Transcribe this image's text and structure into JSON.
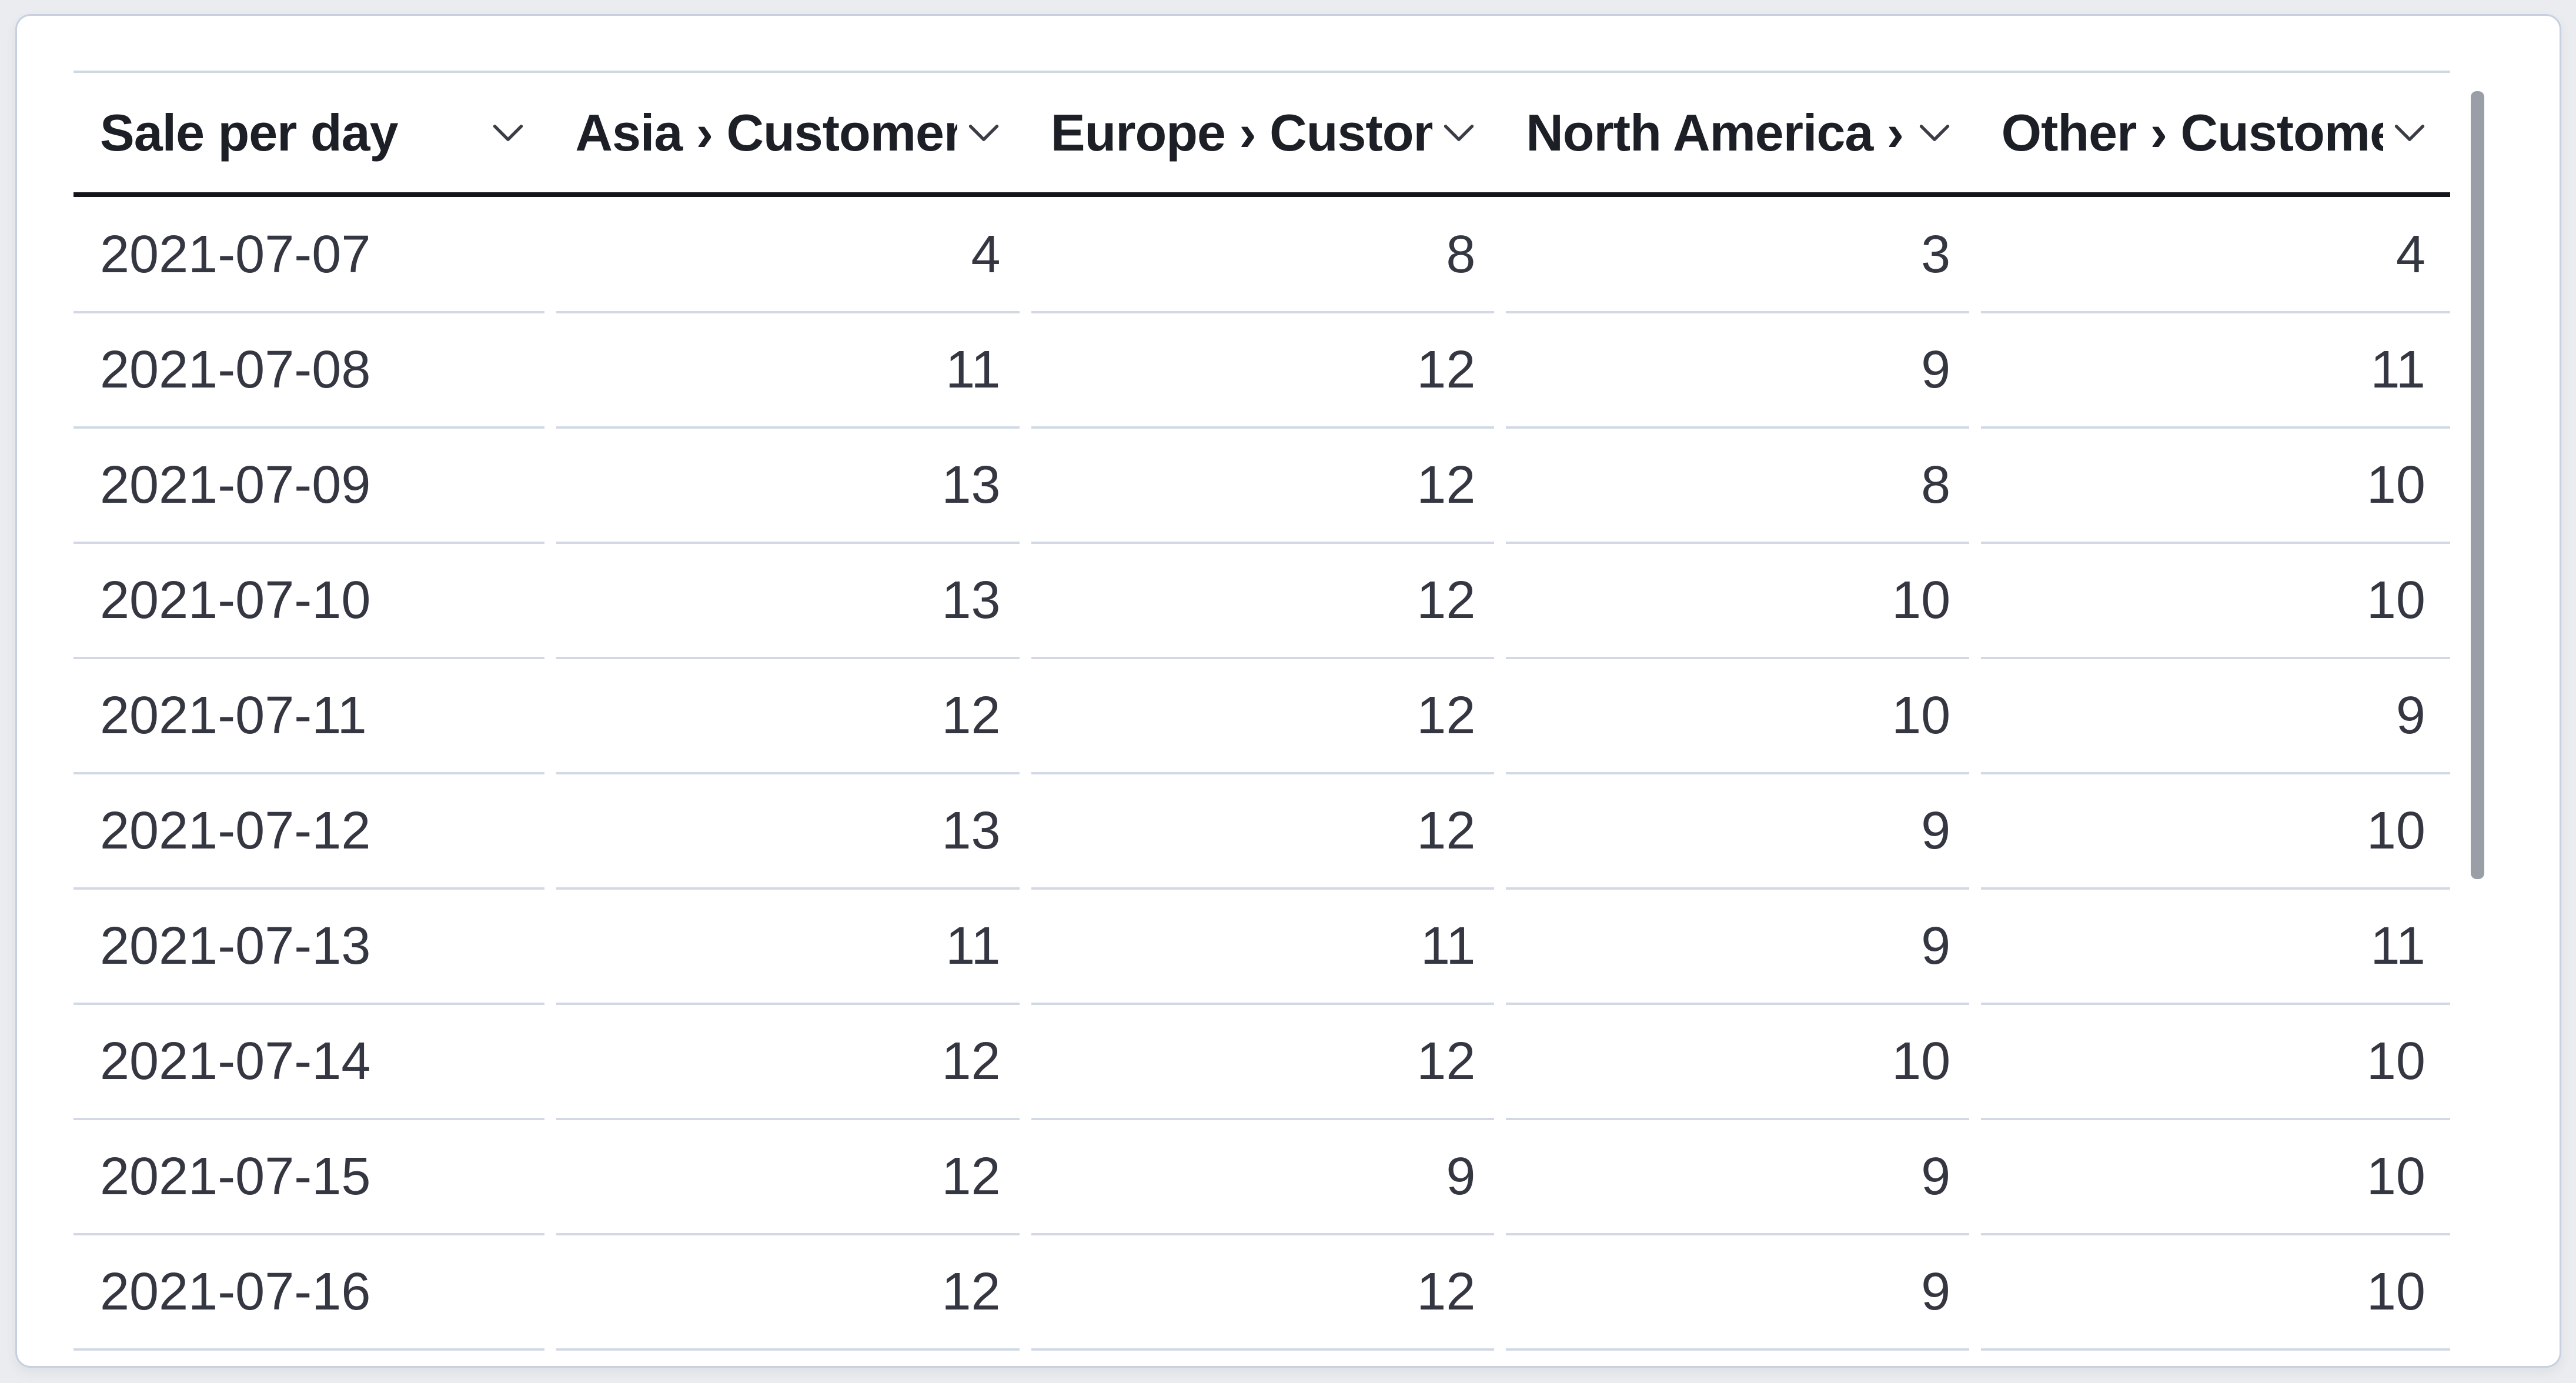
{
  "table": {
    "columns": [
      {
        "id": "sale_per_day",
        "label": "Sale per day"
      },
      {
        "id": "asia",
        "label": "Asia › Customers"
      },
      {
        "id": "europe",
        "label": "Europe › Custom"
      },
      {
        "id": "north_america",
        "label": "North America ›"
      },
      {
        "id": "other",
        "label": "Other › Custome"
      }
    ],
    "rows": [
      {
        "date": "2021-07-07",
        "values": [
          4,
          8,
          3,
          4
        ]
      },
      {
        "date": "2021-07-08",
        "values": [
          11,
          12,
          9,
          11
        ]
      },
      {
        "date": "2021-07-09",
        "values": [
          13,
          12,
          8,
          10
        ]
      },
      {
        "date": "2021-07-10",
        "values": [
          13,
          12,
          10,
          10
        ]
      },
      {
        "date": "2021-07-11",
        "values": [
          12,
          12,
          10,
          9
        ]
      },
      {
        "date": "2021-07-12",
        "values": [
          13,
          12,
          9,
          10
        ]
      },
      {
        "date": "2021-07-13",
        "values": [
          11,
          11,
          9,
          11
        ]
      },
      {
        "date": "2021-07-14",
        "values": [
          12,
          12,
          10,
          10
        ]
      },
      {
        "date": "2021-07-15",
        "values": [
          12,
          9,
          9,
          10
        ]
      },
      {
        "date": "2021-07-16",
        "values": [
          12,
          12,
          9,
          10
        ]
      }
    ]
  },
  "icons": {
    "column_menu": "chevron-down"
  },
  "scrollbar": {
    "orientation": "vertical"
  },
  "colors": {
    "page_background": "#eaecef",
    "card_background": "#ffffff",
    "card_border": "#c6d0e0",
    "header_underline": "#13151a",
    "row_separator": "#d2d9e5",
    "header_text": "#1c1f26",
    "cell_text": "#343741",
    "scrollbar_thumb": "#9a9ea7"
  }
}
